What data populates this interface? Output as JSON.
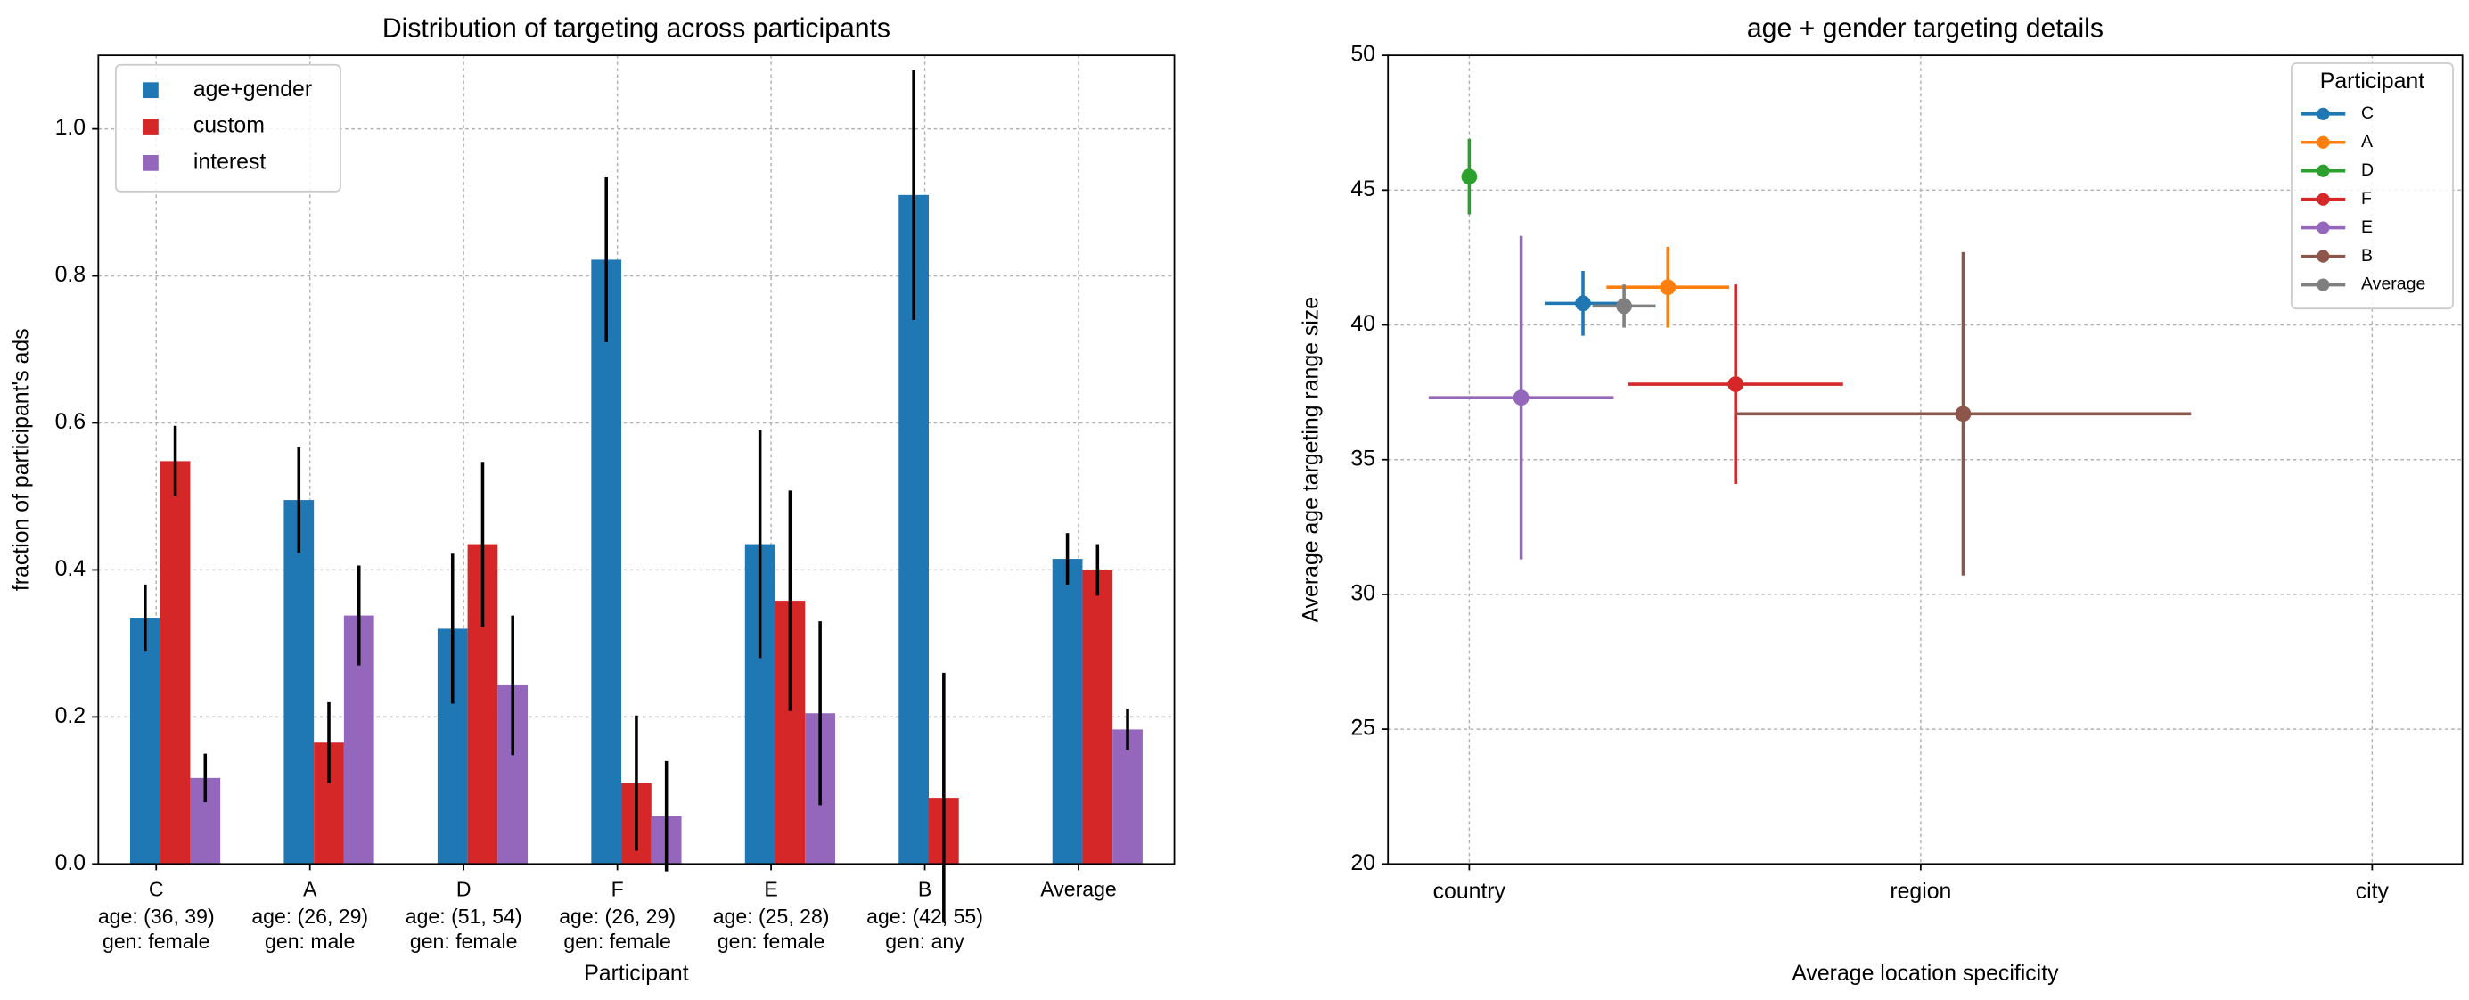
{
  "chart_data": [
    {
      "type": "bar",
      "title": "Distribution of targeting across participants",
      "xlabel": "Participant",
      "ylabel": "fraction of participant's ads",
      "categories": [
        "C",
        "A",
        "D",
        "F",
        "E",
        "B",
        "Average"
      ],
      "category_details": [
        [
          "age: (36, 39)",
          "gen: female"
        ],
        [
          "age: (26, 29)",
          "gen: male"
        ],
        [
          "age: (51, 54)",
          "gen: female"
        ],
        [
          "age: (26, 29)",
          "gen: female"
        ],
        [
          "age: (25, 28)",
          "gen: female"
        ],
        [
          "age: (42, 55)",
          "gen: any"
        ],
        null
      ],
      "series": [
        {
          "name": "age+gender",
          "color": "#1f77b4",
          "values": [
            0.335,
            0.495,
            0.32,
            0.822,
            0.435,
            0.91,
            0.415
          ],
          "errors": [
            0.045,
            0.072,
            0.102,
            0.112,
            0.155,
            0.17,
            0.035
          ]
        },
        {
          "name": "custom",
          "color": "#d62728",
          "values": [
            0.548,
            0.165,
            0.435,
            0.11,
            0.358,
            0.09,
            0.4
          ],
          "errors": [
            0.048,
            0.055,
            0.112,
            0.092,
            0.15,
            0.17,
            0.035
          ]
        },
        {
          "name": "interest",
          "color": "#9467bd",
          "values": [
            0.117,
            0.338,
            0.243,
            0.065,
            0.205,
            null,
            0.183
          ],
          "errors": [
            0.033,
            0.068,
            0.095,
            0.075,
            0.125,
            null,
            0.028
          ]
        }
      ],
      "ylim": [
        0,
        1.1
      ],
      "yticks": [
        {
          "value": 0,
          "label": "0.0"
        },
        0.2,
        0.4,
        0.6,
        0.8,
        {
          "value": 1,
          "label": "1.0"
        }
      ],
      "grid": true,
      "legend": "upper-left"
    },
    {
      "type": "errorbar",
      "title": "age + gender targeting details",
      "xlabel": "Average location specificity",
      "ylabel": "Average age targeting range size",
      "legend_title": "Participant",
      "legend": "upper-right",
      "grid": true,
      "xlim": [
        0.82,
        3.2
      ],
      "xticks": [
        {
          "value": 1,
          "label": "country"
        },
        {
          "value": 2,
          "label": "region"
        },
        {
          "value": 3,
          "label": "city"
        }
      ],
      "ylim": [
        20,
        50
      ],
      "yticks": [
        20,
        25,
        30,
        35,
        40,
        45,
        50
      ],
      "series": [
        {
          "name": "C",
          "color": "#1f77b4",
          "x": [
            1.252
          ],
          "values": [
            40.8
          ],
          "xerr": [
            0.085
          ],
          "yerr": [
            1.2
          ]
        },
        {
          "name": "A",
          "color": "#ff7f0e",
          "x": [
            1.44
          ],
          "values": [
            41.4
          ],
          "xerr": [
            0.136
          ],
          "yerr": [
            1.5
          ]
        },
        {
          "name": "D",
          "color": "#2ca02c",
          "x": [
            1.0
          ],
          "values": [
            45.5
          ],
          "xerr": [
            0
          ],
          "yerr": [
            1.4
          ]
        },
        {
          "name": "F",
          "color": "#d62728",
          "x": [
            1.59
          ],
          "values": [
            37.8
          ],
          "xerr": [
            0.238
          ],
          "yerr": [
            3.7
          ]
        },
        {
          "name": "E",
          "color": "#9467bd",
          "x": [
            1.115
          ],
          "values": [
            37.3
          ],
          "xerr": [
            0.205
          ],
          "yerr": [
            6.0
          ]
        },
        {
          "name": "B",
          "color": "#8c564b",
          "x": [
            2.094
          ],
          "values": [
            36.7
          ],
          "xerr": [
            0.505
          ],
          "yerr": [
            6.0
          ]
        },
        {
          "name": "Average",
          "color": "#7f7f7f",
          "x": [
            1.343
          ],
          "values": [
            40.7
          ],
          "xerr": [
            0.07
          ],
          "yerr": [
            0.8
          ]
        }
      ]
    }
  ]
}
